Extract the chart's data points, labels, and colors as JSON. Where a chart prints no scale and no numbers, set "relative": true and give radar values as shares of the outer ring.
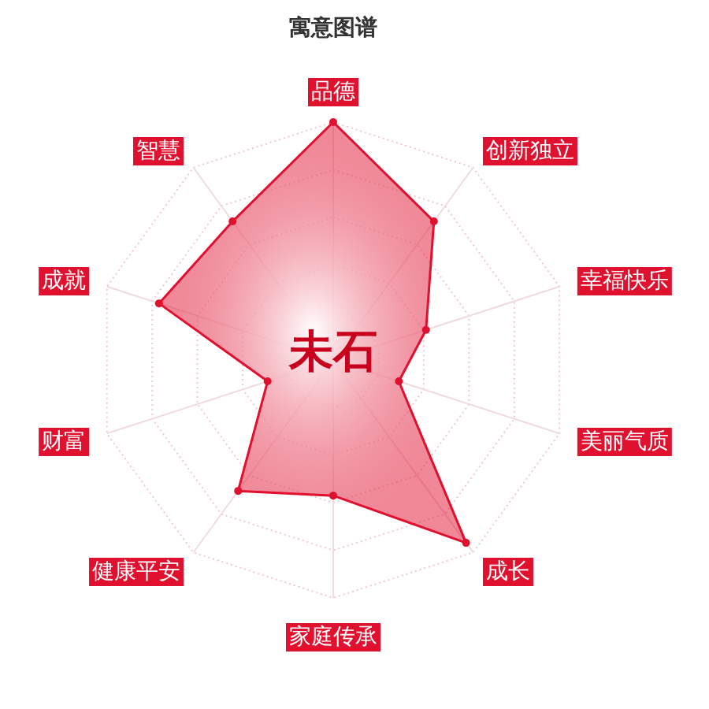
{
  "chart_data": {
    "type": "radar",
    "title": "寓意图谱",
    "relative": true,
    "grid": true,
    "marker": "circle",
    "categories": [
      "品德",
      "创新独立",
      "幸福快乐",
      "美丽气质",
      "成长",
      "家庭传承",
      "健康平安",
      "财富",
      "成就",
      "智慧"
    ],
    "series": [
      {
        "color": "#e0102f",
        "values": [
          1.0,
          0.72,
          0.41,
          0.29,
          0.95,
          0.57,
          0.68,
          0.29,
          0.77,
          0.72
        ]
      }
    ],
    "annotations": [
      "未石"
    ]
  }
}
